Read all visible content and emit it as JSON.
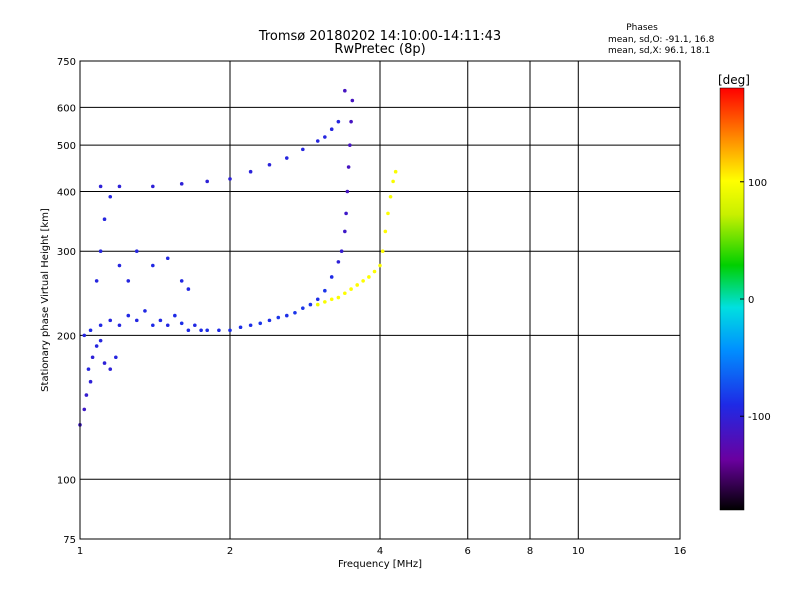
{
  "header": {
    "title": "Tromsø 20180202 14:10:00-14:11:43",
    "subtitle": "RwPretec (8p)",
    "stats_title": "Phases",
    "stats_o": "mean, sd,O: -91.1, 16.8",
    "stats_x": "mean, sd,X:  96.1, 18.1"
  },
  "colorbar": {
    "label": "[deg]",
    "range": [
      -180,
      180
    ],
    "tick_labels": [
      "100",
      "0",
      "-100"
    ],
    "tick_values": [
      100,
      0,
      -100
    ]
  },
  "chart_data": {
    "type": "scatter",
    "title": "Tromsø 20180202 14:10:00-14:11:43",
    "subtitle": "RwPretec (8p)",
    "xlabel": "Frequency [MHz]",
    "ylabel": "Stationary phase Virtual Height [km]",
    "x_scale": "log",
    "y_scale": "log",
    "xlim": [
      1,
      16
    ],
    "ylim": [
      75,
      750
    ],
    "x_ticks": [
      1,
      2,
      4,
      6,
      8,
      10,
      16
    ],
    "x_tick_labels": [
      "1",
      "2",
      "4",
      "6",
      "8",
      "10",
      "16"
    ],
    "y_ticks": [
      75,
      100,
      200,
      300,
      400,
      500,
      600,
      750
    ],
    "y_tick_labels": [
      "75",
      "100",
      "200",
      "300",
      "400",
      "500",
      "600",
      "750"
    ],
    "grid": true,
    "colorbar": "Phase [deg], -180 to 180",
    "series": [
      {
        "mode": "O",
        "points": [
          [
            1.0,
            130,
            -110
          ],
          [
            1.02,
            140,
            -110
          ],
          [
            1.03,
            150,
            -105
          ],
          [
            1.05,
            160,
            -100
          ],
          [
            1.04,
            170,
            -95
          ],
          [
            1.06,
            180,
            -100
          ],
          [
            1.08,
            190,
            -95
          ],
          [
            1.1,
            195,
            -95
          ],
          [
            1.12,
            175,
            -100
          ],
          [
            1.15,
            170,
            -100
          ],
          [
            1.18,
            180,
            -95
          ],
          [
            1.02,
            200,
            -95
          ],
          [
            1.05,
            205,
            -90
          ],
          [
            1.1,
            210,
            -92
          ],
          [
            1.15,
            215,
            -95
          ],
          [
            1.2,
            210,
            -95
          ],
          [
            1.25,
            220,
            -92
          ],
          [
            1.3,
            215,
            -93
          ],
          [
            1.35,
            225,
            -92
          ],
          [
            1.4,
            210,
            -90
          ],
          [
            1.45,
            215,
            -92
          ],
          [
            1.5,
            210,
            -93
          ],
          [
            1.55,
            220,
            -90
          ],
          [
            1.6,
            212,
            -88
          ],
          [
            1.65,
            205,
            -90
          ],
          [
            1.7,
            210,
            -92
          ],
          [
            1.75,
            205,
            -90
          ],
          [
            1.8,
            205,
            -88
          ],
          [
            1.9,
            205,
            -90
          ],
          [
            2.0,
            205,
            -88
          ],
          [
            2.1,
            208,
            -88
          ],
          [
            2.2,
            210,
            -88
          ],
          [
            2.3,
            212,
            -85
          ],
          [
            2.4,
            215,
            -88
          ],
          [
            2.5,
            218,
            -85
          ],
          [
            2.6,
            220,
            -88
          ],
          [
            2.7,
            223,
            -85
          ],
          [
            2.8,
            228,
            -85
          ],
          [
            2.9,
            232,
            -85
          ],
          [
            3.0,
            238,
            -88
          ],
          [
            3.1,
            248,
            -85
          ],
          [
            3.2,
            265,
            -90
          ],
          [
            3.3,
            285,
            -100
          ],
          [
            3.35,
            300,
            -105
          ],
          [
            3.4,
            330,
            -110
          ],
          [
            3.42,
            360,
            -110
          ],
          [
            3.44,
            400,
            -115
          ],
          [
            3.46,
            450,
            -115
          ],
          [
            3.48,
            500,
            -115
          ],
          [
            3.5,
            560,
            -115
          ],
          [
            3.52,
            620,
            -115
          ],
          [
            3.4,
            650,
            -115
          ],
          [
            1.08,
            260,
            -95
          ],
          [
            1.1,
            300,
            -95
          ],
          [
            1.12,
            350,
            -95
          ],
          [
            1.15,
            390,
            -95
          ],
          [
            1.2,
            280,
            -95
          ],
          [
            1.25,
            260,
            -95
          ],
          [
            1.3,
            300,
            -95
          ],
          [
            1.4,
            280,
            -92
          ],
          [
            1.5,
            290,
            -92
          ],
          [
            1.6,
            260,
            -92
          ],
          [
            1.65,
            250,
            -92
          ],
          [
            1.1,
            410,
            -100
          ],
          [
            1.2,
            410,
            -100
          ],
          [
            1.4,
            410,
            -100
          ],
          [
            1.6,
            415,
            -100
          ],
          [
            1.8,
            420,
            -100
          ],
          [
            2.0,
            425,
            -100
          ],
          [
            2.2,
            440,
            -98
          ],
          [
            2.4,
            455,
            -98
          ],
          [
            2.6,
            470,
            -95
          ],
          [
            2.8,
            490,
            -95
          ],
          [
            3.0,
            510,
            -95
          ],
          [
            3.1,
            520,
            -95
          ],
          [
            3.2,
            540,
            -95
          ],
          [
            3.3,
            560,
            -95
          ]
        ]
      },
      {
        "mode": "X",
        "points": [
          [
            3.0,
            232,
            95
          ],
          [
            3.1,
            235,
            98
          ],
          [
            3.2,
            238,
            100
          ],
          [
            3.3,
            240,
            100
          ],
          [
            3.4,
            245,
            100
          ],
          [
            3.5,
            250,
            100
          ],
          [
            3.6,
            255,
            102
          ],
          [
            3.7,
            260,
            100
          ],
          [
            3.8,
            265,
            100
          ],
          [
            3.9,
            272,
            100
          ],
          [
            4.0,
            280,
            100
          ],
          [
            4.05,
            300,
            102
          ],
          [
            4.1,
            330,
            102
          ],
          [
            4.15,
            360,
            100
          ],
          [
            4.2,
            390,
            98
          ],
          [
            4.25,
            420,
            98
          ],
          [
            4.3,
            440,
            98
          ]
        ]
      }
    ]
  }
}
